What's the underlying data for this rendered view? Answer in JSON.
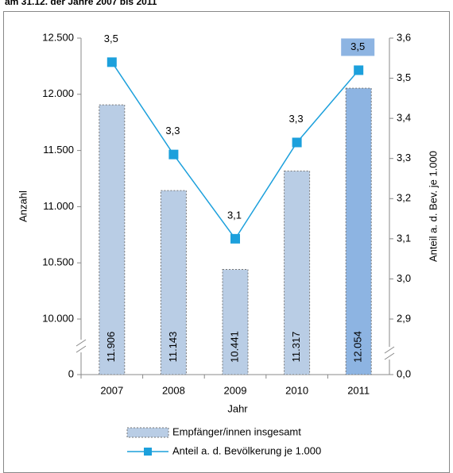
{
  "chart_data": {
    "type": "combo",
    "title": "am 31.12. der Jahre 2007 bis 2011",
    "x_label": "Jahr",
    "y_label": "Anzahl",
    "y2_label": "Anteil a. d. Bev. je 1.000",
    "categories": [
      "2007",
      "2008",
      "2009",
      "2010",
      "2011"
    ],
    "series": [
      {
        "name": "Empfänger/innen insgesamt",
        "type": "bar",
        "axis": "y",
        "color": "#b9cde5",
        "colors": [
          "#b9cde5",
          "#b9cde5",
          "#b9cde5",
          "#b9cde5",
          "#8db4e2"
        ],
        "values": [
          11906,
          11143,
          10441,
          11317,
          12054
        ],
        "value_labels": [
          "11.906",
          "11.143",
          "10.441",
          "11.317",
          "12.054"
        ]
      },
      {
        "name": "Anteil a. d. Bevölkerung je 1.000",
        "type": "line",
        "axis": "y2",
        "color": "#1ca0dc",
        "values": [
          3.54,
          3.31,
          3.1,
          3.34,
          3.52
        ],
        "value_labels": [
          "3,5",
          "3,3",
          "3,1",
          "3,3",
          "3,5"
        ],
        "label_backgrounds": [
          null,
          null,
          null,
          null,
          "#8db4e2"
        ]
      }
    ],
    "ylim": [
      10000,
      12500
    ],
    "yticks": [
      0,
      {
        "value": 10000,
        "label": "10.000"
      },
      {
        "value": 10500,
        "label": "10.500"
      },
      {
        "value": 11000,
        "label": "11.000"
      },
      {
        "value": 11500,
        "label": "11.500"
      },
      {
        "value": 12000,
        "label": "12.000"
      },
      {
        "value": 12500,
        "label": "12.500"
      }
    ],
    "y2lim": [
      2.9,
      3.6
    ],
    "y2ticks": [
      {
        "value": 0,
        "label": "0,0"
      },
      {
        "value": 2.9,
        "label": "2,9"
      },
      {
        "value": 3.0,
        "label": "3,0"
      },
      {
        "value": 3.1,
        "label": "3,1"
      },
      {
        "value": 3.2,
        "label": "3,2"
      },
      {
        "value": 3.3,
        "label": "3,3"
      },
      {
        "value": 3.4,
        "label": "3,4"
      },
      {
        "value": 3.5,
        "label": "3,5"
      },
      {
        "value": 3.6,
        "label": "3,6"
      }
    ],
    "axis_break": true,
    "grid": false,
    "legend": "bottom"
  }
}
